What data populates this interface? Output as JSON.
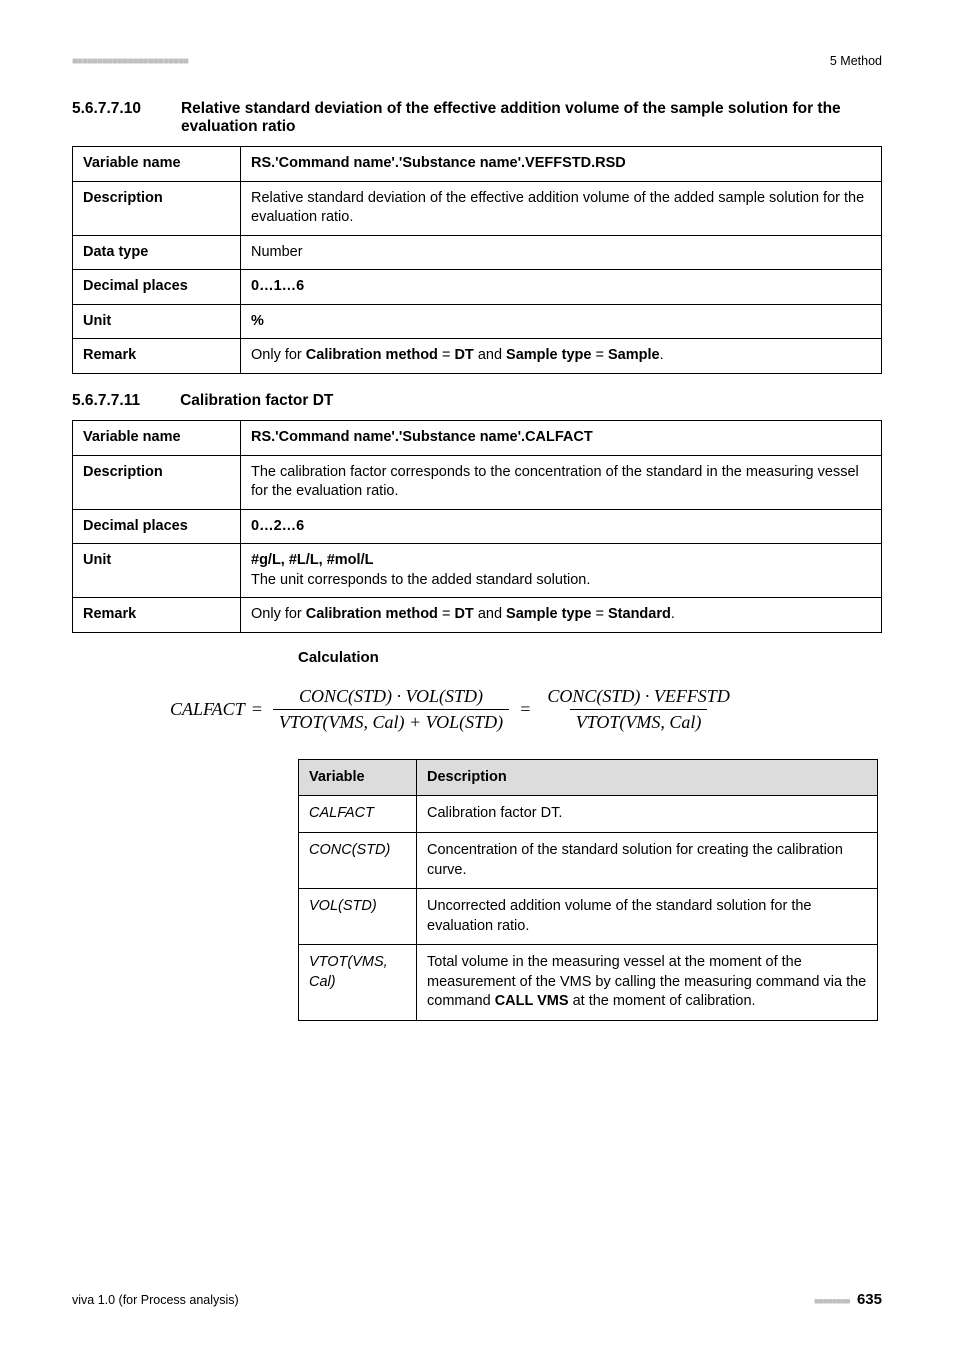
{
  "meta": {
    "top_squares": "■■■■■■■■■■■■■■■■■■■■■■■",
    "top_right": "5 Method",
    "footer_left": "viva 1.0 (for Process analysis)",
    "footer_squares": "■■■■■■■■",
    "footer_page": "635"
  },
  "colors": {
    "border": "#000000",
    "header_bg": "#dcdcdc",
    "text": "#000000",
    "squares": "#bfbfbf",
    "page_bg": "#ffffff"
  },
  "section1": {
    "number": "5.6.7.7.10",
    "title": "Relative standard deviation of the effective addition volume of the sample solution for the evaluation ratio",
    "rows": [
      {
        "label": "Variable name",
        "value_html": "<b>RS.'Command name'.'Substance name'.VEFFSTD.RSD</b>"
      },
      {
        "label": "Description",
        "value_html": "Relative standard deviation of the effective addition volume of the added sample solution for the evaluation ratio."
      },
      {
        "label": "Data type",
        "value_html": "Number"
      },
      {
        "label": "Decimal places",
        "value_html": "<b>0…1…6</b>"
      },
      {
        "label": "Unit",
        "value_html": "<b>%</b>"
      },
      {
        "label": "Remark",
        "value_html": "Only for <b>Calibration method</b> = <b>DT</b> and <b>Sample type</b> = <b>Sample</b>."
      }
    ]
  },
  "section2": {
    "number": "5.6.7.7.11",
    "title": "Calibration factor DT",
    "rows": [
      {
        "label": "Variable name",
        "value_html": "<b>RS.'Command name'.'Substance name'.CALFACT</b>"
      },
      {
        "label": "Description",
        "value_html": "The calibration factor corresponds to the concentration of the standard in the measuring vessel for the evaluation ratio."
      },
      {
        "label": "Decimal places",
        "value_html": "<b>0…2…6</b>"
      },
      {
        "label": "Unit",
        "value_html": "<b>#g/L, #L/L, #mol/L</b><br><span style='font-weight:400'>The unit corresponds to the added standard solution.</span>"
      },
      {
        "label": "Remark",
        "value_html": "Only for <b>Calibration method</b> = <b>DT</b> and <b>Sample type</b> = <b>Standard</b>."
      }
    ]
  },
  "calculation": {
    "heading": "Calculation",
    "formula": {
      "lhs": "CALFACT",
      "frac1_num": "CONC(STD) · VOL(STD)",
      "frac1_den": "VTOT(VMS, Cal) + VOL(STD)",
      "frac2_num": "CONC(STD) · VEFFSTD",
      "frac2_den": "VTOT(VMS, Cal)"
    },
    "table_headers": [
      "Variable",
      "Description"
    ],
    "table_rows": [
      {
        "var": "CALFACT",
        "desc_html": "Calibration factor DT."
      },
      {
        "var": "CONC(STD)",
        "desc_html": "Concentration of the standard solution for creating the calibration curve."
      },
      {
        "var": "VOL(STD)",
        "desc_html": "Uncorrected addition volume of the standard solution for the evaluation ratio."
      },
      {
        "var": "VTOT(VMS, Cal)",
        "desc_html": "Total volume in the measuring vessel at the moment of the measurement of the VMS by calling the measuring command via the command <b>CALL VMS</b> at the moment of calibration."
      }
    ]
  }
}
